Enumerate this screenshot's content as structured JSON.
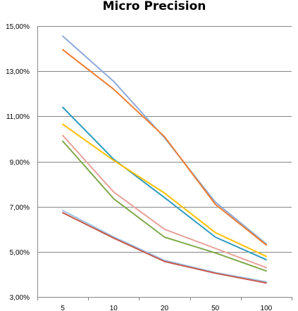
{
  "chart_data": {
    "type": "line",
    "title": "Micro Precision",
    "xlabel": "",
    "ylabel": "",
    "categories": [
      "5",
      "10",
      "20",
      "50",
      "100"
    ],
    "ylim": [
      0.03,
      0.15
    ],
    "yticks": [
      0.03,
      0.05,
      0.07,
      0.09,
      0.11,
      0.13,
      0.15
    ],
    "ytick_labels": [
      "3,00%",
      "5,00%",
      "7,00%",
      "9,00%",
      "11,00%",
      "13,00%",
      "15,00%"
    ],
    "grid": true,
    "legend": "none",
    "series": [
      {
        "color": "#8eaadb",
        "values": [
          0.1455,
          0.1255,
          0.1005,
          0.072,
          0.0535
        ]
      },
      {
        "color": "#ed7d31",
        "values": [
          0.1395,
          0.122,
          0.101,
          0.071,
          0.053
        ]
      },
      {
        "color": "#2e9bc0",
        "values": [
          0.114,
          0.091,
          0.074,
          0.0565,
          0.0465
        ]
      },
      {
        "color": "#ffc000",
        "values": [
          0.1065,
          0.0905,
          0.076,
          0.0585,
          0.048
        ]
      },
      {
        "color": "#e8a09a",
        "values": [
          0.1015,
          0.0765,
          0.06,
          0.0515,
          0.043
        ]
      },
      {
        "color": "#7fa84a",
        "values": [
          0.099,
          0.0735,
          0.0565,
          0.0495,
          0.0415
        ]
      },
      {
        "color": "#9dc3e6",
        "values": [
          0.0683,
          0.0566,
          0.0462,
          0.0408,
          0.0367
        ]
      },
      {
        "color": "#c55a4e",
        "values": [
          0.0673,
          0.0561,
          0.0457,
          0.0405,
          0.0362
        ]
      }
    ]
  }
}
